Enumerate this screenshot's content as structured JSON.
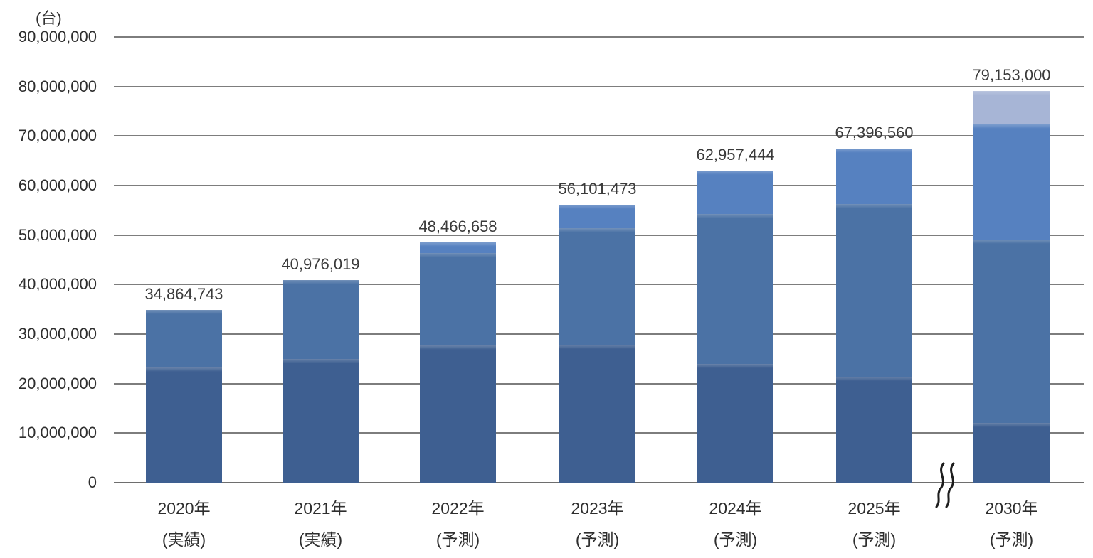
{
  "chart_data": {
    "type": "bar",
    "stacked": true,
    "unit_label": "(台)",
    "grid": true,
    "legend": "none",
    "ylim": [
      0,
      90000000
    ],
    "ytick_interval": 10000000,
    "ytick_labels": [
      "0",
      "10,000,000",
      "20,000,000",
      "30,000,000",
      "40,000,000",
      "50,000,000",
      "60,000,000",
      "70,000,000",
      "80,000,000",
      "90,000,000"
    ],
    "categories": [
      {
        "year": "2020年",
        "note": "(実績)"
      },
      {
        "year": "2021年",
        "note": "(実績)"
      },
      {
        "year": "2022年",
        "note": "(予測)"
      },
      {
        "year": "2023年",
        "note": "(予測)"
      },
      {
        "year": "2024年",
        "note": "(予測)"
      },
      {
        "year": "2025年",
        "note": "(予測)"
      },
      {
        "year": "2030年",
        "note": "(予測)"
      }
    ],
    "totals": [
      34864743,
      40976019,
      48466658,
      56101473,
      62957444,
      67396560,
      79153000
    ],
    "total_labels": [
      "34,864,743",
      "40,976,019",
      "48,466,658",
      "56,101,473",
      "62,957,444",
      "67,396,560",
      "79,153,000"
    ],
    "series": [
      {
        "name": "series-1-bottom-dark",
        "color": "#3E5F91",
        "values": [
          23300000,
          25000000,
          27700000,
          27900000,
          24000000,
          21400000,
          12000000
        ]
      },
      {
        "name": "series-2-medium",
        "color": "#4B72A5",
        "values": [
          11564743,
          15976019,
          18700000,
          23500000,
          30200000,
          34800000,
          37100000
        ]
      },
      {
        "name": "series-3-light",
        "color": "#5681C0",
        "values": [
          0,
          0,
          2066658,
          4701473,
          8757444,
          11196560,
          23200000
        ]
      },
      {
        "name": "series-4-pale",
        "color": "#A7B5D6",
        "values": [
          0,
          0,
          0,
          0,
          0,
          0,
          6853000
        ]
      }
    ],
    "axis_break": {
      "present": true,
      "between": [
        "2025年",
        "2030年"
      ]
    },
    "colors": {
      "gridline": "#7d7d7d",
      "text": "#2e2e2e",
      "data_label": "#3a3a3a",
      "background": "#ffffff"
    }
  }
}
